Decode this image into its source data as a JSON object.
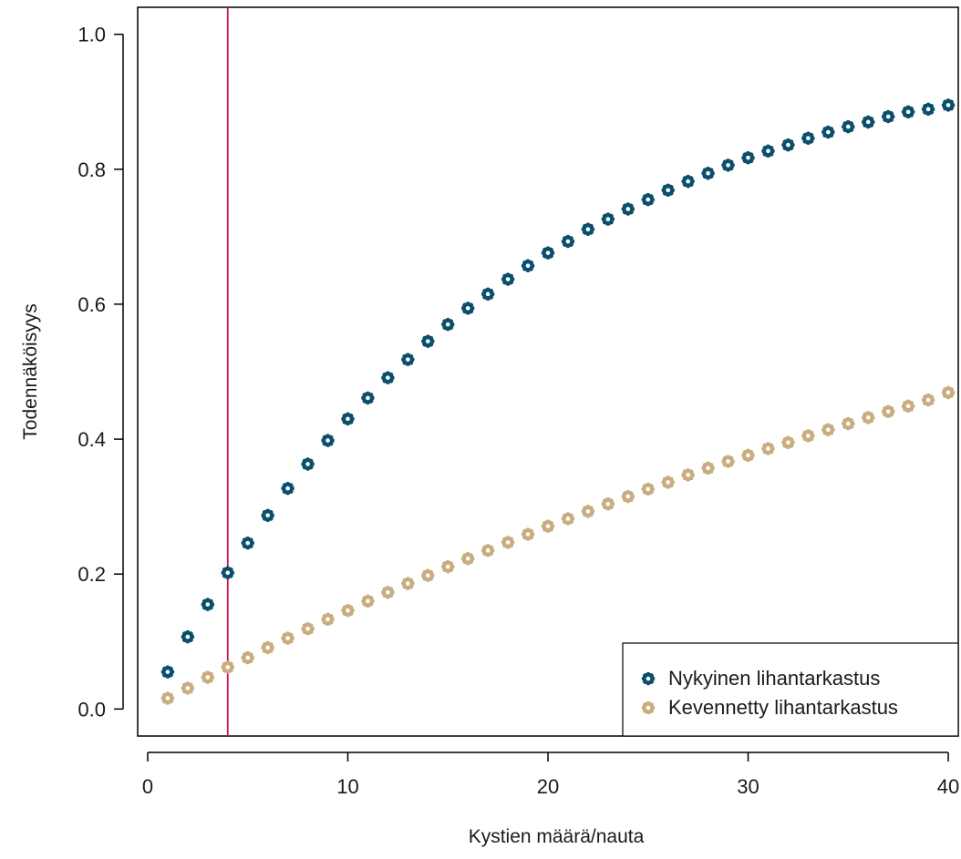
{
  "chart_data": {
    "type": "scatter",
    "title": "",
    "xlabel": "Kystien määrä/nauta",
    "ylabel": "Todennäköisyys",
    "xlim": [
      -0.5,
      40.5
    ],
    "ylim": [
      -0.04,
      1.04
    ],
    "x_ticks": [
      {
        "value": 0,
        "label": "0"
      },
      {
        "value": 10,
        "label": "10"
      },
      {
        "value": 20,
        "label": "20"
      },
      {
        "value": 30,
        "label": "30"
      },
      {
        "value": 40,
        "label": "40"
      }
    ],
    "y_ticks": [
      {
        "value": 0.0,
        "label": "0.0"
      },
      {
        "value": 0.2,
        "label": "0.2"
      },
      {
        "value": 0.4,
        "label": "0.4"
      },
      {
        "value": 0.6,
        "label": "0.6"
      },
      {
        "value": 0.8,
        "label": "0.8"
      },
      {
        "value": 1.0,
        "label": "1.0"
      }
    ],
    "grid": false,
    "legend_position": "bottom-right",
    "vertical_line": {
      "x": 4,
      "color": "#c2185b"
    },
    "x": [
      1,
      2,
      3,
      4,
      5,
      6,
      7,
      8,
      9,
      10,
      11,
      12,
      13,
      14,
      15,
      16,
      17,
      18,
      19,
      20,
      21,
      22,
      23,
      24,
      25,
      26,
      27,
      28,
      29,
      30,
      31,
      32,
      33,
      34,
      35,
      36,
      37,
      38,
      39,
      40
    ],
    "series": [
      {
        "name": "Nykyinen lihantarkastus",
        "color": "#0b4f6c",
        "values": [
          0.055,
          0.107,
          0.155,
          0.202,
          0.246,
          0.287,
          0.327,
          0.363,
          0.398,
          0.43,
          0.461,
          0.491,
          0.518,
          0.545,
          0.57,
          0.594,
          0.615,
          0.637,
          0.657,
          0.676,
          0.693,
          0.711,
          0.726,
          0.741,
          0.755,
          0.769,
          0.782,
          0.794,
          0.806,
          0.817,
          0.827,
          0.836,
          0.846,
          0.855,
          0.863,
          0.87,
          0.878,
          0.885,
          0.889,
          0.895
        ]
      },
      {
        "name": "Kevennetty lihantarkastus",
        "color": "#c8ad7f",
        "values": [
          0.016,
          0.031,
          0.047,
          0.062,
          0.076,
          0.091,
          0.105,
          0.119,
          0.133,
          0.146,
          0.16,
          0.173,
          0.186,
          0.198,
          0.211,
          0.223,
          0.235,
          0.247,
          0.259,
          0.271,
          0.282,
          0.293,
          0.304,
          0.315,
          0.326,
          0.336,
          0.347,
          0.357,
          0.367,
          0.376,
          0.386,
          0.395,
          0.405,
          0.414,
          0.423,
          0.432,
          0.441,
          0.449,
          0.458,
          0.469
        ]
      }
    ]
  }
}
